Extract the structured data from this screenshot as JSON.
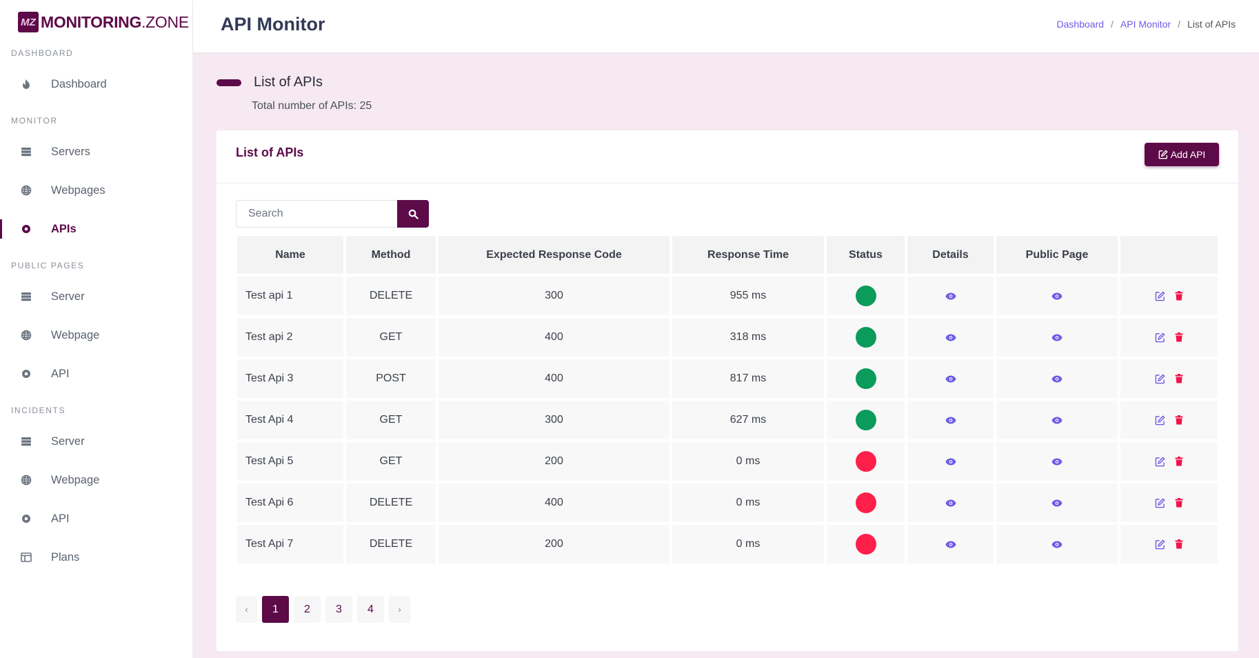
{
  "brand": {
    "mark": "MZ",
    "name_bold": "MONITORING",
    "name_light": ".ZONE"
  },
  "header": {
    "title": "API Monitor",
    "breadcrumb": [
      "Dashboard",
      "API Monitor",
      "List of APIs"
    ]
  },
  "sidebar": {
    "sections": [
      {
        "label": "DASHBOARD",
        "items": [
          {
            "label": "Dashboard",
            "icon": "fire-icon"
          }
        ]
      },
      {
        "label": "MONITOR",
        "items": [
          {
            "label": "Servers",
            "icon": "server-icon"
          },
          {
            "label": "Webpages",
            "icon": "globe-icon"
          },
          {
            "label": "APIs",
            "icon": "circle-dot-icon",
            "active": true
          }
        ]
      },
      {
        "label": "PUBLIC PAGES",
        "items": [
          {
            "label": "Server",
            "icon": "server-icon"
          },
          {
            "label": "Webpage",
            "icon": "globe-icon"
          },
          {
            "label": "API",
            "icon": "circle-dot-icon"
          }
        ]
      },
      {
        "label": "INCIDENTS",
        "items": [
          {
            "label": "Server",
            "icon": "server-icon"
          },
          {
            "label": "Webpage",
            "icon": "globe-icon"
          },
          {
            "label": "API",
            "icon": "circle-dot-icon"
          },
          {
            "label": "Plans",
            "icon": "table-icon"
          }
        ]
      }
    ]
  },
  "section": {
    "title": "List of APIs",
    "subtitle": "Total number of APIs: 25"
  },
  "card": {
    "title": "List of APIs",
    "add_button": "Add API"
  },
  "search": {
    "placeholder": "Search",
    "value": ""
  },
  "table": {
    "columns": [
      "Name",
      "Method",
      "Expected Response Code",
      "Response Time",
      "Status",
      "Details",
      "Public Page",
      ""
    ],
    "rows": [
      {
        "name": "Test api 1",
        "method": "DELETE",
        "code": "300",
        "time": "955 ms",
        "status": "up"
      },
      {
        "name": "Test api 2",
        "method": "GET",
        "code": "400",
        "time": "318 ms",
        "status": "up"
      },
      {
        "name": "Test Api 3",
        "method": "POST",
        "code": "400",
        "time": "817 ms",
        "status": "up"
      },
      {
        "name": "Test Api 4",
        "method": "GET",
        "code": "300",
        "time": "627 ms",
        "status": "up"
      },
      {
        "name": "Test Api 5",
        "method": "GET",
        "code": "200",
        "time": "0 ms",
        "status": "down"
      },
      {
        "name": "Test Api 6",
        "method": "DELETE",
        "code": "400",
        "time": "0 ms",
        "status": "down"
      },
      {
        "name": "Test Api 7",
        "method": "DELETE",
        "code": "200",
        "time": "0 ms",
        "status": "down"
      }
    ]
  },
  "pagination": {
    "prev": "‹",
    "next": "›",
    "pages": [
      "1",
      "2",
      "3",
      "4"
    ],
    "current": "1"
  },
  "colors": {
    "brand": "#5c0a48",
    "up": "#0b9b5b",
    "down": "#ff1f4b",
    "link": "#6c5ce7",
    "delete": "#f2134b"
  }
}
